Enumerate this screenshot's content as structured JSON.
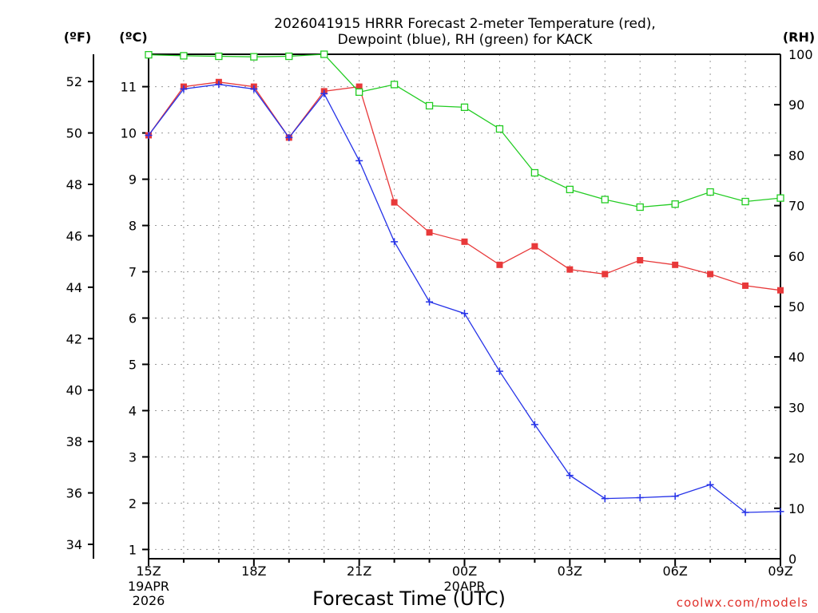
{
  "chart_data": {
    "type": "line",
    "title_line1": "2026041915 HRRR Forecast 2-meter Temperature (red),",
    "title_line2": "Dewpoint (blue), RH (green) for KACK",
    "xlabel": "Forecast Time (UTC)",
    "credit": "coolwx.com/models",
    "unit_f": "(ºF)",
    "unit_c": "(ºC)",
    "unit_rh": "(RH)",
    "ylim_c": [
      0.8,
      11.7
    ],
    "ylim_f": [
      33.44,
      53.06
    ],
    "ylim_rh": [
      0,
      100
    ],
    "yticks_c": [
      "1",
      "2",
      "3",
      "4",
      "5",
      "6",
      "7",
      "8",
      "9",
      "10",
      "11"
    ],
    "yticks_f": [
      "34",
      "36",
      "38",
      "40",
      "42",
      "44",
      "46",
      "48",
      "50",
      "52"
    ],
    "yticks_rh": [
      "0",
      "10",
      "20",
      "30",
      "40",
      "50",
      "60",
      "70",
      "80",
      "90",
      "100"
    ],
    "xlim_hours": [
      0,
      18
    ],
    "xticks": [
      {
        "hour": 0,
        "label": "15Z",
        "sub1": "19APR",
        "sub2": "2026"
      },
      {
        "hour": 3,
        "label": "18Z",
        "sub1": "",
        "sub2": ""
      },
      {
        "hour": 6,
        "label": "21Z",
        "sub1": "",
        "sub2": ""
      },
      {
        "hour": 9,
        "label": "00Z",
        "sub1": "20APR",
        "sub2": ""
      },
      {
        "hour": 12,
        "label": "03Z",
        "sub1": "",
        "sub2": ""
      },
      {
        "hour": 15,
        "label": "06Z",
        "sub1": "",
        "sub2": ""
      },
      {
        "hour": 18,
        "label": "09Z",
        "sub1": "",
        "sub2": ""
      }
    ],
    "x": [
      0,
      1,
      2,
      3,
      4,
      5,
      6,
      7,
      8,
      9,
      10,
      11,
      12,
      13,
      14,
      15,
      16,
      17,
      18
    ],
    "series": [
      {
        "name": "Temperature",
        "axis": "c",
        "color": "#e8393a",
        "marker": "filled-square",
        "values": [
          9.95,
          11.0,
          11.1,
          11.0,
          9.9,
          10.9,
          11.0,
          8.5,
          7.85,
          7.65,
          7.15,
          7.55,
          7.05,
          6.95,
          7.25,
          7.15,
          6.95,
          6.7,
          6.6
        ]
      },
      {
        "name": "Dewpoint",
        "axis": "c",
        "color": "#2633e8",
        "marker": "plus",
        "values": [
          9.95,
          10.95,
          11.05,
          10.95,
          9.9,
          10.85,
          9.4,
          7.65,
          6.35,
          6.1,
          4.85,
          3.7,
          2.6,
          2.1,
          2.12,
          2.15,
          2.4,
          1.8,
          1.82
        ]
      },
      {
        "name": "RH",
        "axis": "rh",
        "color": "#22cc22",
        "marker": "open-square",
        "values": [
          99.9,
          99.7,
          99.6,
          99.5,
          99.6,
          100.0,
          92.5,
          94.0,
          89.8,
          89.5,
          85.2,
          76.5,
          73.2,
          71.2,
          69.7,
          70.3,
          72.7,
          70.8,
          71.5
        ]
      }
    ]
  }
}
